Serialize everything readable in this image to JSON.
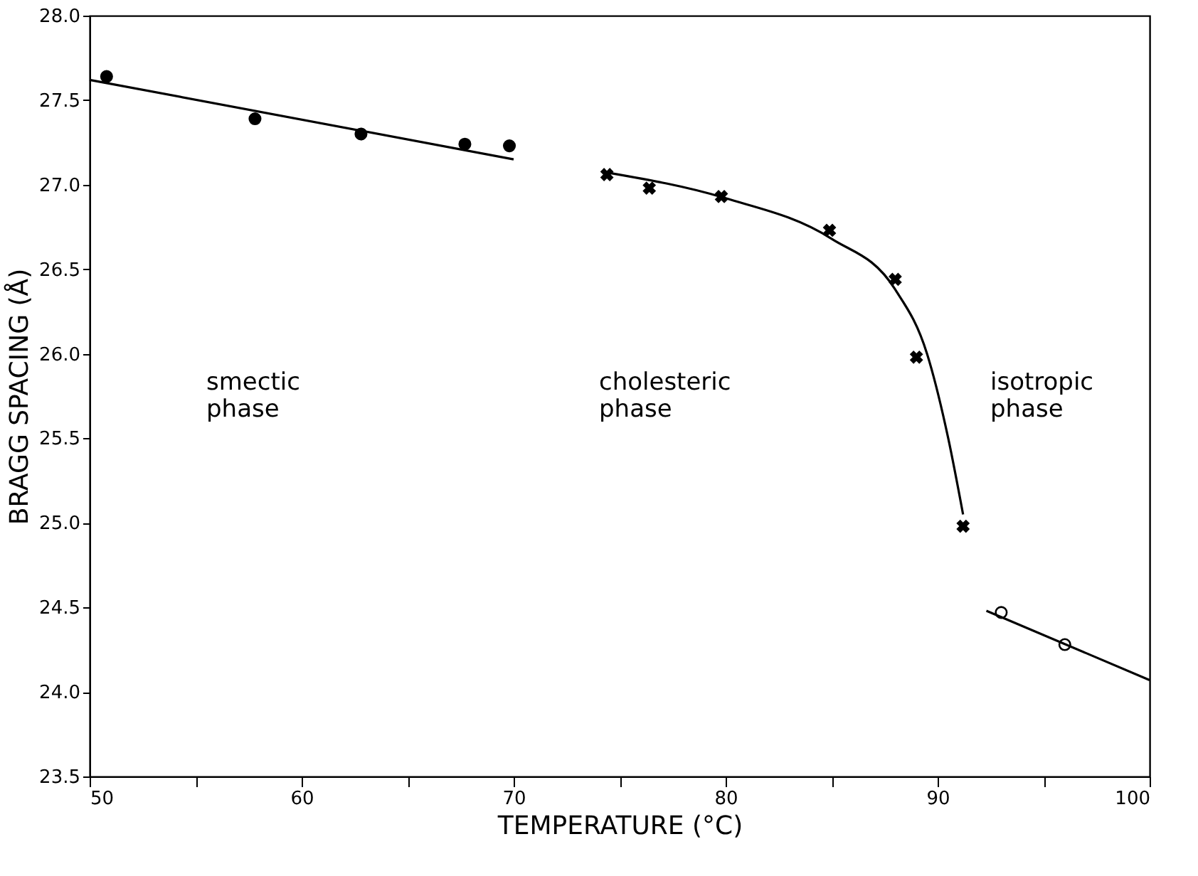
{
  "chart_data": {
    "type": "scatter",
    "xlabel": "TEMPERATURE (°C)",
    "ylabel": "BRAGG SPACING (Å)",
    "xlim": [
      50,
      100
    ],
    "ylim": [
      23.5,
      28.0
    ],
    "xticks": [
      50,
      {
        "value": 55,
        "label": null
      },
      60,
      {
        "value": 65,
        "label": null
      },
      70,
      {
        "value": 75,
        "label": null
      },
      80,
      {
        "value": 85,
        "label": null
      },
      90,
      {
        "value": 95,
        "label": null
      },
      100
    ],
    "yticks": [
      {
        "value": 23.5,
        "label": "23.5"
      },
      {
        "value": 24,
        "label": "24.0"
      },
      {
        "value": 24.5,
        "label": "24.5"
      },
      {
        "value": 25,
        "label": "25.0"
      },
      {
        "value": 25.5,
        "label": "25.5"
      },
      {
        "value": 26,
        "label": "26.0"
      },
      {
        "value": 26.5,
        "label": "26.5"
      },
      {
        "value": 27,
        "label": "27.0"
      },
      {
        "value": 27.5,
        "label": "27.5"
      },
      {
        "value": 28,
        "label": "28.0"
      }
    ],
    "grid": false,
    "series": [
      {
        "marker": "circle",
        "color": "#000000",
        "x": [
          50.8,
          57.8,
          62.8,
          67.7,
          69.8
        ],
        "values": [
          27.64,
          27.39,
          27.3,
          27.24,
          27.23
        ]
      },
      {
        "type": "line",
        "line_style": "solid",
        "color": "#000000",
        "x": [
          50,
          70
        ],
        "values": [
          27.62,
          27.15
        ]
      },
      {
        "marker": "cross",
        "color": "#000000",
        "x": [
          74.4,
          76.4,
          79.8,
          84.9,
          88.0,
          89.0,
          91.2
        ],
        "values": [
          27.06,
          26.98,
          26.93,
          26.73,
          26.44,
          25.98,
          24.98
        ]
      },
      {
        "type": "line",
        "line_style": "solid",
        "color": "#000000",
        "x": [
          74.5,
          80,
          85,
          88,
          89.5,
          90.5,
          91.2
        ],
        "values": [
          27.07,
          26.92,
          26.68,
          26.38,
          26.0,
          25.5,
          25.05
        ]
      },
      {
        "marker": "circle",
        "color": "#ffffff",
        "x": [
          93.0,
          96.0
        ],
        "values": [
          24.47,
          24.28
        ]
      },
      {
        "type": "line",
        "line_style": "solid",
        "color": "#000000",
        "x": [
          92.3,
          100
        ],
        "values": [
          24.48,
          24.07
        ]
      }
    ],
    "annotations": [
      "smectic phase",
      "cholesteric phase",
      "isotropic phase"
    ]
  }
}
